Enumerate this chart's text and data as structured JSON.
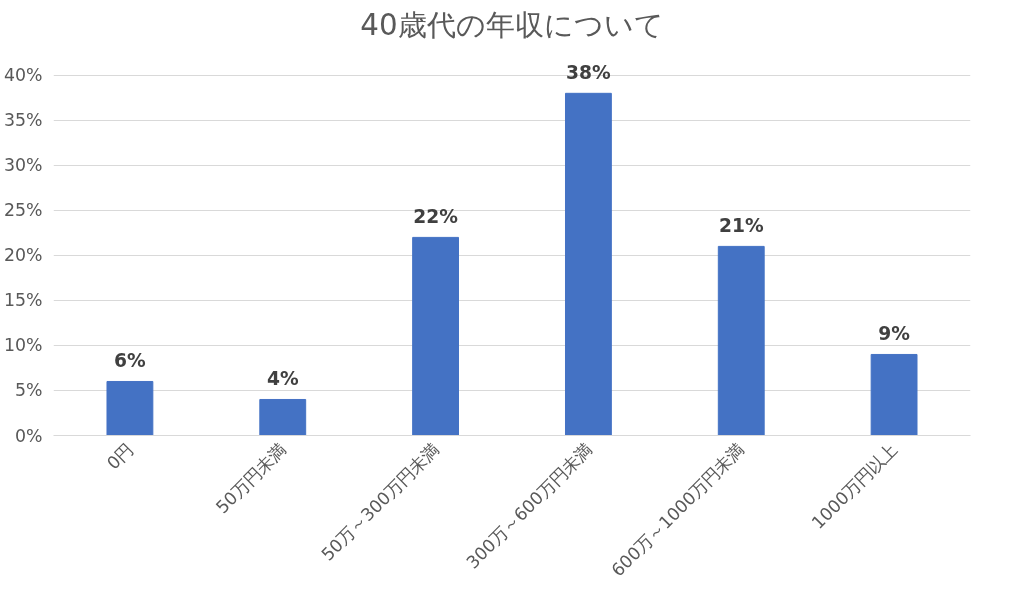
{
  "chart_data": {
    "type": "bar",
    "title": "40歳代の年収について",
    "categories": [
      "0円",
      "50万円未満",
      "50万～300万円未満",
      "300万～600万円未満",
      "600万～1000万円未満",
      "1000万円以上"
    ],
    "values": [
      6,
      4,
      22,
      38,
      21,
      9
    ],
    "color": "#4472c4",
    "ylim": [
      0,
      40
    ],
    "yticks": [
      {
        "value": 0,
        "label": "0%"
      },
      {
        "value": 5,
        "label": "5%"
      },
      {
        "value": 10,
        "label": "10%"
      },
      {
        "value": 15,
        "label": "15%"
      },
      {
        "value": 20,
        "label": "20%"
      },
      {
        "value": 25,
        "label": "25%"
      },
      {
        "value": 30,
        "label": "30%"
      },
      {
        "value": 35,
        "label": "35%"
      },
      {
        "value": 40,
        "label": "40%"
      }
    ],
    "value_labels": [
      "6%",
      "4%",
      "22%",
      "38%",
      "21%",
      "9%"
    ],
    "grid": "y"
  }
}
